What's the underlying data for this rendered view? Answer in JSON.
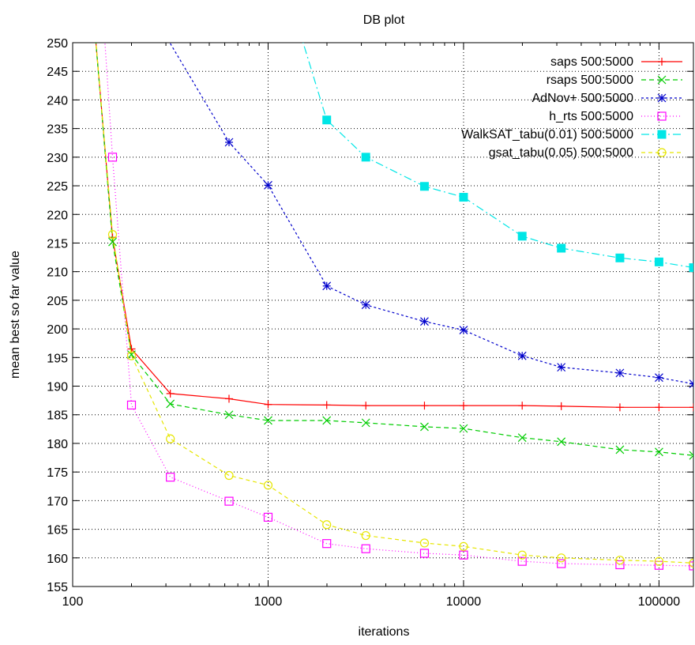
{
  "chart_data": {
    "type": "line",
    "title": "DB plot",
    "xlabel": "iterations",
    "ylabel": "mean best so far value",
    "x_scale": "log",
    "xlim": [
      100,
      150000
    ],
    "ylim": [
      155,
      250
    ],
    "x_ticks": [
      100,
      1000,
      10000,
      100000
    ],
    "x_tick_labels": [
      "100",
      "1000",
      "10000",
      "100000"
    ],
    "y_ticks": [
      155,
      160,
      165,
      170,
      175,
      180,
      185,
      190,
      195,
      200,
      205,
      210,
      215,
      220,
      225,
      230,
      235,
      240,
      245,
      250
    ],
    "y_tick_labels": [
      "155",
      "160",
      "165",
      "170",
      "175",
      "180",
      "185",
      "190",
      "195",
      "200",
      "205",
      "210",
      "215",
      "220",
      "225",
      "230",
      "235",
      "240",
      "245",
      "250"
    ],
    "grid": true,
    "legend_position": "top-right",
    "series": [
      {
        "name": "saps 500:5000",
        "color": "#ff0000",
        "marker": "plus",
        "dash": "",
        "x": [
          130,
          160,
          200,
          316,
          631,
          1000,
          1995,
          3162,
          6310,
          10000,
          19953,
          31623,
          63096,
          100000,
          150000
        ],
        "y": [
          252,
          216,
          196.5,
          188.7,
          187.8,
          186.8,
          186.7,
          186.6,
          186.6,
          186.6,
          186.6,
          186.5,
          186.3,
          186.3,
          186.3
        ]
      },
      {
        "name": "rsaps 500:5000",
        "color": "#00cc00",
        "marker": "x",
        "dash": "6,4",
        "x": [
          130,
          160,
          200,
          316,
          631,
          1000,
          1995,
          3162,
          6310,
          10000,
          19953,
          31623,
          63096,
          100000,
          150000
        ],
        "y": [
          252,
          215.2,
          195.5,
          186.9,
          185.0,
          184.0,
          184.0,
          183.6,
          182.9,
          182.6,
          181.0,
          180.3,
          178.9,
          178.5,
          177.9
        ]
      },
      {
        "name": "AdNov+ 500:5000",
        "color": "#0000cc",
        "marker": "star",
        "dash": "3,3",
        "x": [
          290,
          631,
          1000,
          1995,
          3162,
          6310,
          10000,
          19953,
          31623,
          63096,
          100000,
          150000
        ],
        "y": [
          252,
          232.6,
          225.1,
          207.5,
          204.2,
          201.3,
          199.8,
          195.3,
          193.3,
          192.3,
          191.5,
          190.4
        ]
      },
      {
        "name": "h_rts 500:5000",
        "color": "#ff00ff",
        "marker": "square-open",
        "dash": "1,3",
        "x": [
          145,
          160,
          200,
          316,
          631,
          1000,
          1995,
          3162,
          6310,
          10000,
          19953,
          31623,
          63096,
          100000,
          150000
        ],
        "y": [
          252,
          230.0,
          186.7,
          174.1,
          169.9,
          167.1,
          162.5,
          161.6,
          160.8,
          160.5,
          159.4,
          159.0,
          158.8,
          158.7,
          158.6
        ]
      },
      {
        "name": "WalkSAT_tabu(0.01) 500:5000",
        "color": "#00e6e6",
        "marker": "square-filled",
        "dash": "10,4,2,4",
        "x": [
          1450,
          1995,
          3162,
          6310,
          10000,
          19953,
          31623,
          63096,
          100000,
          150000
        ],
        "y": [
          252,
          236.5,
          230.0,
          224.9,
          223.0,
          216.2,
          214.1,
          212.4,
          211.7,
          210.7
        ]
      },
      {
        "name": "gsat_tabu(0.05) 500:5000",
        "color": "#e6e600",
        "marker": "circle-open",
        "dash": "5,4",
        "x": [
          130,
          160,
          200,
          316,
          631,
          1000,
          1995,
          3162,
          6310,
          10000,
          19953,
          31623,
          63096,
          100000,
          150000
        ],
        "y": [
          252,
          216.5,
          195.3,
          180.8,
          174.4,
          172.7,
          165.8,
          163.9,
          162.6,
          162.0,
          160.5,
          160.0,
          159.6,
          159.4,
          159.1
        ]
      }
    ]
  }
}
